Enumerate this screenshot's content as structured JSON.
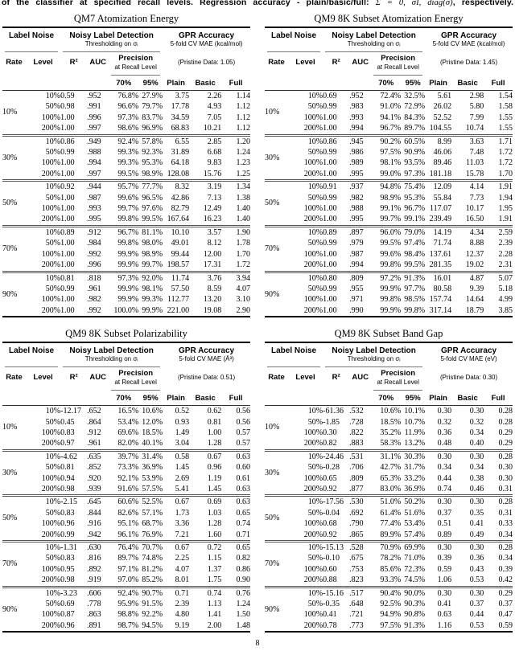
{
  "caption": {
    "part1": "of the classifier at specified recall levels. Regression accuracy - plain/basic/full: ",
    "math": "Σ = 0, σ̂I, diag(σ̂)",
    "part2": ", respectively."
  },
  "page_number": "8",
  "header_labels": {
    "label_noise": "Label Noise",
    "detection": "Noisy Label Detection",
    "detection_sub": "Thresholding on σᵢ",
    "gpr": "GPR Accuracy",
    "rate": "Rate",
    "level": "Level",
    "r2": "R²",
    "auc": "AUC",
    "precision": "Precision",
    "precision_sub": "at Recall Level",
    "p70": "70%",
    "p95": "95%",
    "plain": "Plain",
    "basic": "Basic",
    "full": "Full"
  },
  "tables": [
    {
      "title": "QM7 Atomization Energy",
      "mae_unit": "5-fold CV MAE (kcal/mol)",
      "pristine": "(Pristine Data: 1.05)",
      "groups": [
        {
          "rate": "10%",
          "rows": [
            [
              "10%",
              "0.59",
              ".952",
              "76.8%",
              "27.9%",
              "3.75",
              "2.26",
              "1.14"
            ],
            [
              "50%",
              "0.98",
              ".991",
              "96.6%",
              "79.7%",
              "17.78",
              "4.93",
              "1.12"
            ],
            [
              "100%",
              "1.00",
              ".996",
              "97.3%",
              "83.7%",
              "34.59",
              "7.05",
              "1.12"
            ],
            [
              "200%",
              "1.00",
              ".997",
              "98.6%",
              "96.9%",
              "68.83",
              "10.21",
              "1.12"
            ]
          ]
        },
        {
          "rate": "30%",
          "rows": [
            [
              "10%",
              "0.86",
              ".949",
              "92.4%",
              "57.8%",
              "6.55",
              "2.85",
              "1.20"
            ],
            [
              "50%",
              "0.99",
              ".988",
              "99.3%",
              "92.3%",
              "31.89",
              "6.68",
              "1.24"
            ],
            [
              "100%",
              "1.00",
              ".994",
              "99.3%",
              "95.3%",
              "64.18",
              "9.83",
              "1.23"
            ],
            [
              "200%",
              "1.00",
              ".997",
              "99.5%",
              "98.9%",
              "128.08",
              "15.76",
              "1.25"
            ]
          ]
        },
        {
          "rate": "50%",
          "rows": [
            [
              "10%",
              "0.92",
              ".944",
              "95.7%",
              "77.7%",
              "8.32",
              "3.19",
              "1.34"
            ],
            [
              "50%",
              "1.00",
              ".987",
              "99.6%",
              "96.5%",
              "42.86",
              "7.13",
              "1.38"
            ],
            [
              "100%",
              "1.00",
              ".993",
              "99.7%",
              "97.6%",
              "82.79",
              "12.49",
              "1.40"
            ],
            [
              "200%",
              "1.00",
              ".995",
              "99.8%",
              "99.5%",
              "167.64",
              "16.23",
              "1.40"
            ]
          ]
        },
        {
          "rate": "70%",
          "rows": [
            [
              "10%",
              "0.89",
              ".912",
              "96.7%",
              "81.1%",
              "10.10",
              "3.57",
              "1.90"
            ],
            [
              "50%",
              "1.00",
              ".984",
              "99.8%",
              "98.0%",
              "49.01",
              "8.12",
              "1.78"
            ],
            [
              "100%",
              "1.00",
              ".992",
              "99.9%",
              "98.9%",
              "99.44",
              "12.00",
              "1.70"
            ],
            [
              "200%",
              "1.00",
              ".996",
              "99.9%",
              "99.7%",
              "198.57",
              "17.31",
              "1.72"
            ]
          ]
        },
        {
          "rate": "90%",
          "rows": [
            [
              "10%",
              "0.81",
              ".818",
              "97.3%",
              "92.0%",
              "11.74",
              "3.76",
              "3.94"
            ],
            [
              "50%",
              "0.99",
              ".961",
              "99.9%",
              "98.1%",
              "57.50",
              "8.59",
              "4.07"
            ],
            [
              "100%",
              "1.00",
              ".982",
              "99.9%",
              "99.3%",
              "112.77",
              "13.20",
              "3.10"
            ],
            [
              "200%",
              "1.00",
              ".992",
              "100.0%",
              "99.9%",
              "221.00",
              "19.08",
              "2.90"
            ]
          ]
        }
      ]
    },
    {
      "title": "QM9 8K Subset Atomization Energy",
      "mae_unit": "5-fold CV MAE (kcal/mol)",
      "pristine": "(Pristine Data: 1.45)",
      "groups": [
        {
          "rate": "10%",
          "rows": [
            [
              "10%",
              "0.69",
              ".952",
              "72.4%",
              "32.5%",
              "5.61",
              "2.98",
              "1.54"
            ],
            [
              "50%",
              "0.99",
              ".983",
              "91.0%",
              "72.9%",
              "26.02",
              "5.80",
              "1.58"
            ],
            [
              "100%",
              "1.00",
              ".993",
              "94.1%",
              "84.3%",
              "52.52",
              "7.99",
              "1.55"
            ],
            [
              "200%",
              "1.00",
              ".994",
              "96.7%",
              "89.7%",
              "104.55",
              "10.74",
              "1.55"
            ]
          ]
        },
        {
          "rate": "30%",
          "rows": [
            [
              "10%",
              "0.86",
              ".945",
              "90.2%",
              "60.5%",
              "8.99",
              "3.63",
              "1.71"
            ],
            [
              "50%",
              "0.99",
              ".986",
              "97.5%",
              "90.9%",
              "46.06",
              "7.48",
              "1.72"
            ],
            [
              "100%",
              "1.00",
              ".989",
              "98.1%",
              "93.5%",
              "89.46",
              "11.03",
              "1.72"
            ],
            [
              "200%",
              "1.00",
              ".995",
              "99.0%",
              "97.3%",
              "181.18",
              "15.78",
              "1.70"
            ]
          ]
        },
        {
          "rate": "50%",
          "rows": [
            [
              "10%",
              "0.91",
              ".937",
              "94.8%",
              "75.4%",
              "12.09",
              "4.14",
              "1.91"
            ],
            [
              "50%",
              "0.99",
              ".982",
              "98.9%",
              "95.3%",
              "55.84",
              "7.73",
              "1.94"
            ],
            [
              "100%",
              "1.00",
              ".988",
              "99.1%",
              "96.7%",
              "117.07",
              "10.17",
              "1.95"
            ],
            [
              "200%",
              "1.00",
              ".995",
              "99.7%",
              "99.1%",
              "239.49",
              "16.50",
              "1.91"
            ]
          ]
        },
        {
          "rate": "70%",
          "rows": [
            [
              "10%",
              "0.89",
              ".897",
              "96.0%",
              "79.0%",
              "14.19",
              "4.34",
              "2.59"
            ],
            [
              "50%",
              "0.99",
              ".979",
              "99.5%",
              "97.4%",
              "71.74",
              "8.88",
              "2.39"
            ],
            [
              "100%",
              "1.00",
              ".987",
              "99.6%",
              "98.4%",
              "137.61",
              "12.37",
              "2.28"
            ],
            [
              "200%",
              "1.00",
              ".994",
              "99.8%",
              "99.5%",
              "281.35",
              "19.02",
              "2.31"
            ]
          ]
        },
        {
          "rate": "90%",
          "rows": [
            [
              "10%",
              "0.80",
              ".809",
              "97.2%",
              "91.3%",
              "16.01",
              "4.87",
              "5.07"
            ],
            [
              "50%",
              "0.99",
              ".955",
              "99.9%",
              "97.7%",
              "80.58",
              "9.39",
              "5.18"
            ],
            [
              "100%",
              "1.00",
              ".971",
              "99.8%",
              "98.5%",
              "157.74",
              "14.64",
              "4.99"
            ],
            [
              "200%",
              "1.00",
              ".990",
              "99.9%",
              "99.8%",
              "317.14",
              "18.79",
              "3.85"
            ]
          ]
        }
      ]
    },
    {
      "title": "QM9 8K Subset Polarizability",
      "mae_unit": "5-fold CV MAE (Å³)",
      "pristine": "(Pristine Data: 0.51)",
      "groups": [
        {
          "rate": "10%",
          "rows": [
            [
              "10%",
              "-12.17",
              ".652",
              "16.5%",
              "10.6%",
              "0.52",
              "0.62",
              "0.56"
            ],
            [
              "50%",
              "0.45",
              ".864",
              "53.4%",
              "12.0%",
              "0.93",
              "0.81",
              "0.56"
            ],
            [
              "100%",
              "0.83",
              ".912",
              "69.6%",
              "18.5%",
              "1.49",
              "1.00",
              "0.57"
            ],
            [
              "200%",
              "0.97",
              ".961",
              "82.0%",
              "40.1%",
              "3.04",
              "1.28",
              "0.57"
            ]
          ]
        },
        {
          "rate": "30%",
          "rows": [
            [
              "10%",
              "-4.62",
              ".635",
              "39.7%",
              "31.4%",
              "0.58",
              "0.67",
              "0.63"
            ],
            [
              "50%",
              "0.81",
              ".852",
              "73.3%",
              "36.9%",
              "1.45",
              "0.96",
              "0.60"
            ],
            [
              "100%",
              "0.94",
              ".920",
              "92.1%",
              "53.9%",
              "2.69",
              "1.19",
              "0.61"
            ],
            [
              "200%",
              "0.98",
              ".939",
              "91.6%",
              "57.5%",
              "5.41",
              "1.45",
              "0.63"
            ]
          ]
        },
        {
          "rate": "50%",
          "rows": [
            [
              "10%",
              "-2.15",
              ".645",
              "60.6%",
              "52.5%",
              "0.67",
              "0.69",
              "0.63"
            ],
            [
              "50%",
              "0.83",
              ".844",
              "82.6%",
              "57.1%",
              "1.73",
              "1.03",
              "0.65"
            ],
            [
              "100%",
              "0.96",
              ".916",
              "95.1%",
              "68.7%",
              "3.36",
              "1.28",
              "0.74"
            ],
            [
              "200%",
              "0.99",
              ".942",
              "96.1%",
              "76.9%",
              "7.21",
              "1.60",
              "0.71"
            ]
          ]
        },
        {
          "rate": "70%",
          "rows": [
            [
              "10%",
              "-1.31",
              ".630",
              "76.4%",
              "70.7%",
              "0.67",
              "0.72",
              "0.65"
            ],
            [
              "50%",
              "0.83",
              ".816",
              "89.7%",
              "74.8%",
              "2.25",
              "1.15",
              "0.82"
            ],
            [
              "100%",
              "0.95",
              ".892",
              "97.1%",
              "81.2%",
              "4.07",
              "1.37",
              "0.86"
            ],
            [
              "200%",
              "0.98",
              ".919",
              "97.0%",
              "85.2%",
              "8.01",
              "1.75",
              "0.90"
            ]
          ]
        },
        {
          "rate": "90%",
          "rows": [
            [
              "10%",
              "-3.23",
              ".606",
              "92.4%",
              "90.7%",
              "0.71",
              "0.74",
              "0.76"
            ],
            [
              "50%",
              "0.69",
              ".778",
              "95.9%",
              "91.5%",
              "2.39",
              "1.13",
              "1.24"
            ],
            [
              "100%",
              "0.87",
              ".863",
              "98.8%",
              "92.2%",
              "4.80",
              "1.41",
              "1.50"
            ],
            [
              "200%",
              "0.96",
              ".891",
              "98.7%",
              "94.5%",
              "9.19",
              "2.00",
              "1.48"
            ]
          ]
        }
      ]
    },
    {
      "title": "QM9 8K Subset Band Gap",
      "mae_unit": "5-fold CV MAE (eV)",
      "pristine": "(Pristine Data: 0.30)",
      "groups": [
        {
          "rate": "10%",
          "rows": [
            [
              "10%",
              "-61.36",
              ".532",
              "10.6%",
              "10.1%",
              "0.30",
              "0.30",
              "0.28"
            ],
            [
              "50%",
              "-1.85",
              ".728",
              "18.5%",
              "10.7%",
              "0.32",
              "0.32",
              "0.28"
            ],
            [
              "100%",
              "0.30",
              ".822",
              "35.2%",
              "11.9%",
              "0.36",
              "0.34",
              "0.29"
            ],
            [
              "200%",
              "0.82",
              ".883",
              "58.3%",
              "13.2%",
              "0.48",
              "0.40",
              "0.29"
            ]
          ]
        },
        {
          "rate": "30%",
          "rows": [
            [
              "10%",
              "-24.46",
              ".531",
              "31.1%",
              "30.3%",
              "0.30",
              "0.30",
              "0.28"
            ],
            [
              "50%",
              "-0.28",
              ".706",
              "42.7%",
              "31.7%",
              "0.34",
              "0.34",
              "0.30"
            ],
            [
              "100%",
              "0.65",
              ".809",
              "65.3%",
              "33.2%",
              "0.44",
              "0.38",
              "0.30"
            ],
            [
              "200%",
              "0.92",
              ".877",
              "83.0%",
              "36.9%",
              "0.74",
              "0.46",
              "0.31"
            ]
          ]
        },
        {
          "rate": "50%",
          "rows": [
            [
              "10%",
              "-17.56",
              ".530",
              "51.0%",
              "50.2%",
              "0.30",
              "0.30",
              "0.28"
            ],
            [
              "50%",
              "-0.04",
              ".692",
              "61.4%",
              "51.6%",
              "0.37",
              "0.35",
              "0.31"
            ],
            [
              "100%",
              "0.68",
              ".790",
              "77.4%",
              "53.4%",
              "0.51",
              "0.41",
              "0.33"
            ],
            [
              "200%",
              "0.92",
              ".865",
              "89.9%",
              "57.4%",
              "0.89",
              "0.49",
              "0.34"
            ]
          ]
        },
        {
          "rate": "70%",
          "rows": [
            [
              "10%",
              "-15.13",
              ".528",
              "70.9%",
              "69.9%",
              "0.30",
              "0.30",
              "0.28"
            ],
            [
              "50%",
              "-0.10",
              ".675",
              "78.2%",
              "71.0%",
              "0.39",
              "0.36",
              "0.34"
            ],
            [
              "100%",
              "0.60",
              ".753",
              "85.6%",
              "72.3%",
              "0.59",
              "0.43",
              "0.39"
            ],
            [
              "200%",
              "0.88",
              ".823",
              "93.3%",
              "74.5%",
              "1.06",
              "0.53",
              "0.42"
            ]
          ]
        },
        {
          "rate": "90%",
          "rows": [
            [
              "10%",
              "-15.16",
              ".517",
              "90.4%",
              "90.0%",
              "0.30",
              "0.30",
              "0.29"
            ],
            [
              "50%",
              "-0.35",
              ".648",
              "92.5%",
              "90.3%",
              "0.41",
              "0.37",
              "0.37"
            ],
            [
              "100%",
              "0.41",
              ".721",
              "94.9%",
              "90.8%",
              "0.63",
              "0.44",
              "0.47"
            ],
            [
              "200%",
              "0.78",
              ".773",
              "97.5%",
              "91.3%",
              "1.16",
              "0.53",
              "0.59"
            ]
          ]
        }
      ]
    }
  ]
}
